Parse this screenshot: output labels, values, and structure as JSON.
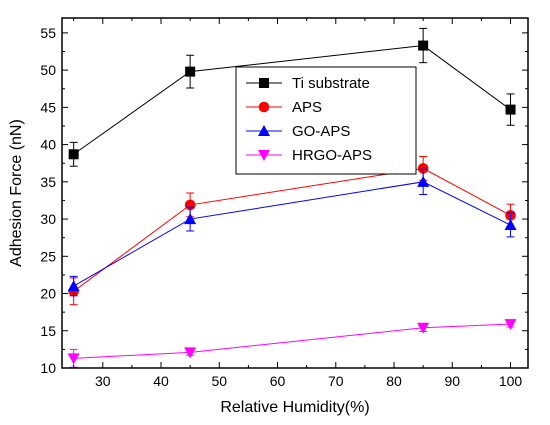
{
  "chart_data": {
    "type": "line",
    "xlabel": "Relative Humidity(%)",
    "ylabel": "Adhesion Force (nN)",
    "xlim": [
      23,
      103
    ],
    "ylim": [
      10,
      57
    ],
    "xticks": [
      30,
      40,
      50,
      60,
      70,
      80,
      90,
      100
    ],
    "yticks": [
      10,
      15,
      20,
      25,
      30,
      35,
      40,
      45,
      50,
      55
    ],
    "x": [
      25,
      45,
      85,
      100
    ],
    "grid": false,
    "legend_position": "top-center",
    "series": [
      {
        "name": "Ti substrate",
        "color": "#000000",
        "marker": "square",
        "values": [
          38.7,
          49.8,
          53.3,
          44.7
        ],
        "errors": [
          1.6,
          2.2,
          2.3,
          2.1
        ]
      },
      {
        "name": "APS",
        "color": "#ff0000",
        "marker": "circle",
        "values": [
          20.3,
          31.9,
          36.8,
          30.5
        ],
        "errors": [
          1.8,
          1.6,
          1.6,
          1.5
        ]
      },
      {
        "name": "GO-APS",
        "color": "#0000ff",
        "marker": "triangle-up",
        "values": [
          21.0,
          30.0,
          35.0,
          29.2
        ],
        "errors": [
          1.3,
          1.6,
          1.7,
          1.6
        ]
      },
      {
        "name": "HRGO-APS",
        "color": "#ff00ff",
        "marker": "triangle-down",
        "values": [
          11.3,
          12.1,
          15.4,
          15.9
        ],
        "errors": [
          1.2,
          0.4,
          0.5,
          0.4
        ]
      }
    ]
  }
}
